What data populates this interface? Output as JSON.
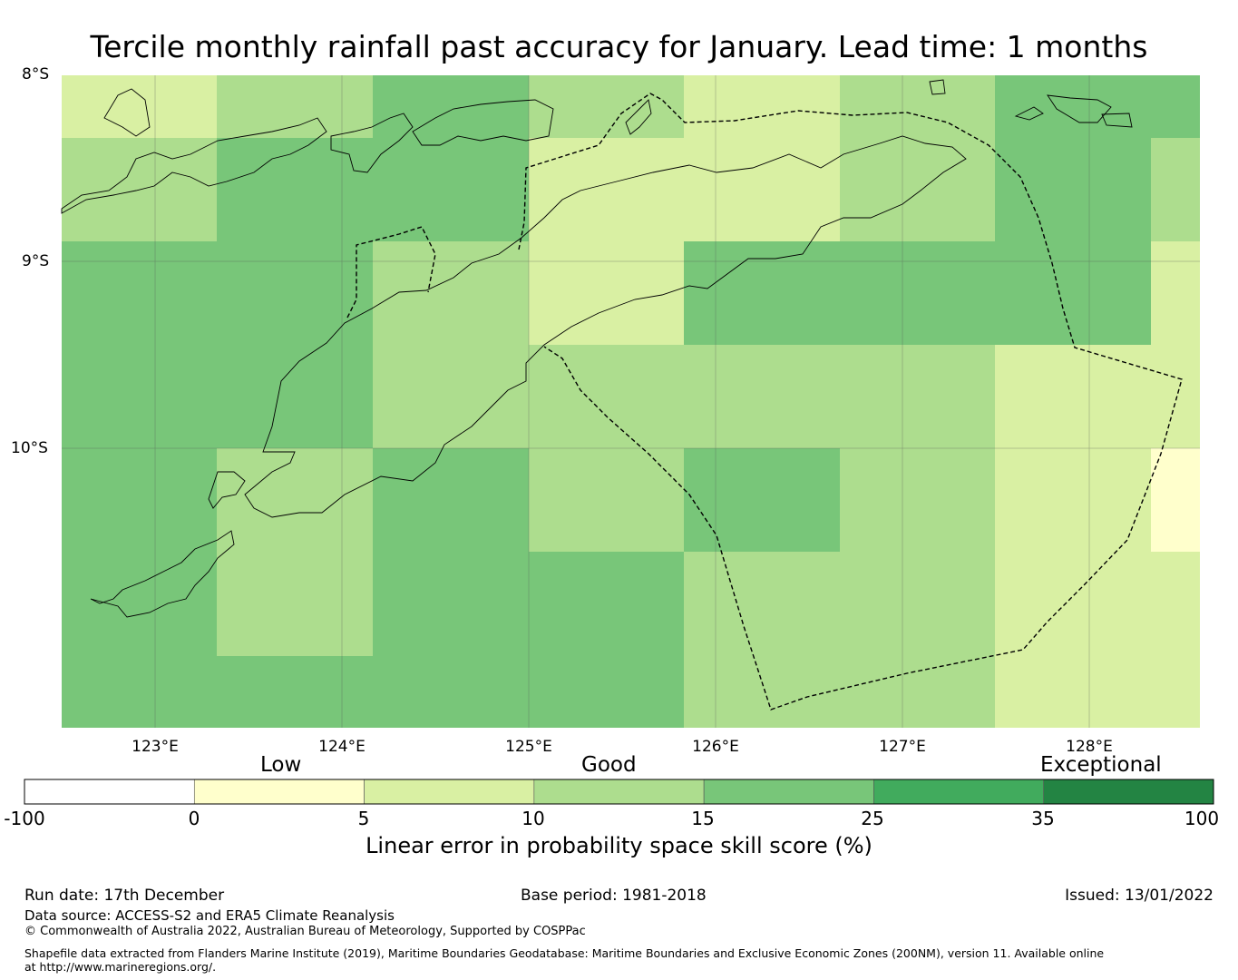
{
  "title": "Tercile monthly rainfall past accuracy for January. Lead time: 1 months",
  "lat_labels": [
    "8°S",
    "9°S",
    "10°S"
  ],
  "lon_labels": [
    "123°E",
    "124°E",
    "125°E",
    "126°E",
    "127°E",
    "128°E"
  ],
  "colorbar": {
    "categories": [
      "Low",
      "Good",
      "Exceptional"
    ],
    "ticks": [
      "-100",
      "0",
      "5",
      "10",
      "15",
      "25",
      "35",
      "100"
    ],
    "colors": [
      "#ffffff",
      "#ffffcc",
      "#d9f0a3",
      "#addd8e",
      "#78c679",
      "#41ab5d",
      "#238443"
    ],
    "label": "Linear error in probability space skill score (%)"
  },
  "footer": {
    "run_date": "Run date: 17th December",
    "base_period": "Base period: 1981-2018",
    "issued": "Issued: 13/01/2022",
    "data_source": "Data source: ACCESS-S2 and ERA5 Climate Reanalysis",
    "copyright": "© Commonwealth of Australia 2022, Australian Bureau of Meteorology, Supported by COSPPac",
    "shapefile": "Shapefile data extracted from Flanders Marine Institute (2019), Maritime Boundaries Geodatabase: Maritime Boundaries and Exclusive Economic Zones (200NM), version 11. Available online at http://www.marineregions.org/."
  },
  "grid": {
    "comment_free": true,
    "levels": [
      "0-5",
      "5-10",
      "10-15",
      "15-25"
    ],
    "level_colors": [
      "#ffffcc",
      "#d9f0a3",
      "#addd8e",
      "#78c679"
    ],
    "rows": [
      [
        1,
        2,
        3,
        2,
        1,
        2,
        3,
        3
      ],
      [
        2,
        3,
        3,
        1,
        1,
        2,
        3,
        2
      ],
      [
        3,
        3,
        2,
        1,
        3,
        3,
        3,
        1
      ],
      [
        3,
        3,
        2,
        2,
        2,
        2,
        1,
        1
      ],
      [
        3,
        2,
        3,
        2,
        3,
        2,
        1,
        0
      ],
      [
        3,
        2,
        3,
        3,
        2,
        2,
        1,
        1
      ],
      [
        3,
        3,
        3,
        3,
        2,
        2,
        1,
        1
      ]
    ]
  }
}
